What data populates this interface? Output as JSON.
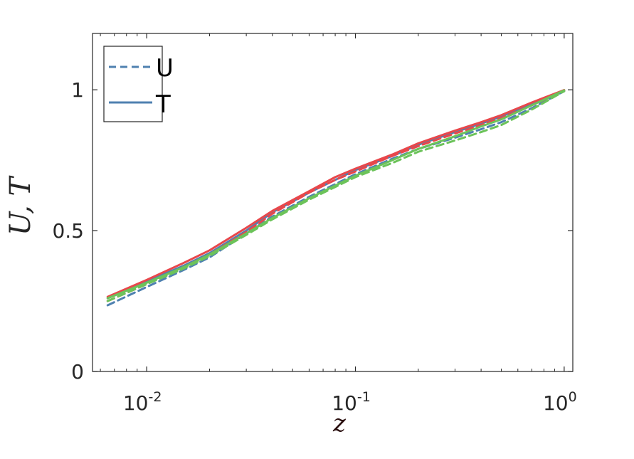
{
  "chart_data": {
    "type": "line",
    "title": "",
    "xlabel": "z",
    "ylabel": "U, T",
    "xscale": "log",
    "xlim": [
      0.0055,
      1.1
    ],
    "ylim": [
      0,
      1.2
    ],
    "x_ticks": [
      {
        "value": 0.01,
        "base": "10",
        "exp": "-2"
      },
      {
        "value": 0.1,
        "base": "10",
        "exp": "-1"
      },
      {
        "value": 1,
        "base": "10",
        "exp": "0"
      }
    ],
    "y_ticks": [
      {
        "value": 0,
        "label": "0"
      },
      {
        "value": 0.5,
        "label": "0.5"
      },
      {
        "value": 1,
        "label": "1"
      }
    ],
    "grid": false,
    "legend": {
      "position": "top-left",
      "entries": [
        {
          "label": "U",
          "style": "dashed",
          "color": "#4f81b0"
        },
        {
          "label": "T",
          "style": "solid",
          "color": "#4f81b0"
        }
      ]
    },
    "series": [
      {
        "variable": "U",
        "color": "#4f81b0",
        "style": "dashed",
        "x": [
          0.0065,
          0.01,
          0.015,
          0.02,
          0.03,
          0.04,
          0.06,
          0.08,
          0.1,
          0.15,
          0.2,
          0.3,
          0.4,
          0.5,
          0.7,
          1.0
        ],
        "y": [
          0.235,
          0.3,
          0.36,
          0.405,
          0.49,
          0.55,
          0.62,
          0.665,
          0.7,
          0.755,
          0.79,
          0.83,
          0.86,
          0.885,
          0.935,
          0.995
        ]
      },
      {
        "variable": "T",
        "color": "#4f81b0",
        "style": "solid",
        "x": [
          0.0065,
          0.01,
          0.015,
          0.02,
          0.03,
          0.04,
          0.06,
          0.08,
          0.1,
          0.15,
          0.2,
          0.3,
          0.4,
          0.5,
          0.7,
          1.0
        ],
        "y": [
          0.26,
          0.32,
          0.375,
          0.42,
          0.5,
          0.565,
          0.635,
          0.68,
          0.715,
          0.765,
          0.805,
          0.85,
          0.88,
          0.905,
          0.95,
          0.998
        ]
      },
      {
        "variable": "U",
        "color": "#e8474b",
        "style": "dashed",
        "x": [
          0.0065,
          0.01,
          0.015,
          0.02,
          0.03,
          0.04,
          0.06,
          0.08,
          0.1,
          0.15,
          0.2,
          0.3,
          0.4,
          0.5,
          0.7,
          1.0
        ],
        "y": [
          0.25,
          0.31,
          0.37,
          0.415,
          0.495,
          0.56,
          0.635,
          0.68,
          0.71,
          0.765,
          0.8,
          0.845,
          0.875,
          0.9,
          0.945,
          0.997
        ]
      },
      {
        "variable": "T",
        "color": "#e8474b",
        "style": "solid",
        "x": [
          0.0065,
          0.01,
          0.015,
          0.02,
          0.03,
          0.04,
          0.06,
          0.08,
          0.1,
          0.15,
          0.2,
          0.3,
          0.4,
          0.5,
          0.7,
          1.0
        ],
        "y": [
          0.265,
          0.325,
          0.385,
          0.43,
          0.51,
          0.57,
          0.64,
          0.69,
          0.72,
          0.77,
          0.81,
          0.855,
          0.885,
          0.91,
          0.955,
          0.999
        ]
      },
      {
        "variable": "U",
        "color": "#6cc35a",
        "style": "dashed",
        "x": [
          0.0065,
          0.01,
          0.015,
          0.02,
          0.03,
          0.04,
          0.06,
          0.08,
          0.1,
          0.15,
          0.2,
          0.3,
          0.4,
          0.5,
          0.7,
          1.0
        ],
        "y": [
          0.25,
          0.31,
          0.365,
          0.41,
          0.485,
          0.54,
          0.61,
          0.655,
          0.69,
          0.74,
          0.78,
          0.82,
          0.85,
          0.875,
          0.93,
          0.995
        ]
      },
      {
        "variable": "T",
        "color": "#6cc35a",
        "style": "solid",
        "x": [
          0.0065,
          0.01,
          0.015,
          0.02,
          0.03,
          0.04,
          0.06,
          0.08,
          0.1,
          0.15,
          0.2,
          0.3,
          0.4,
          0.5,
          0.7,
          1.0
        ],
        "y": [
          0.26,
          0.315,
          0.37,
          0.415,
          0.49,
          0.545,
          0.615,
          0.66,
          0.695,
          0.75,
          0.79,
          0.835,
          0.87,
          0.895,
          0.945,
          0.998
        ]
      }
    ]
  }
}
